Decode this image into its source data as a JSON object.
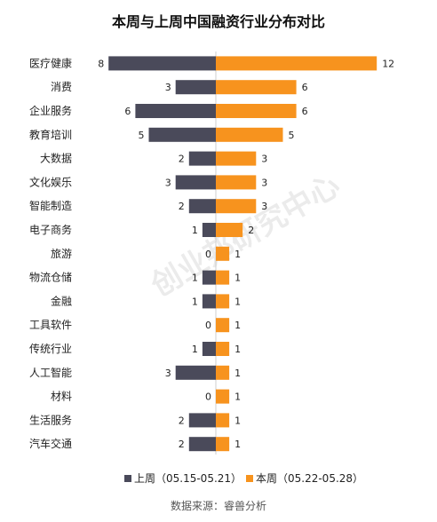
{
  "chart_data": {
    "type": "bar",
    "title": "本周与上周中国融资行业分布对比",
    "categories": [
      "医疗健康",
      "消费",
      "企业服务",
      "教育培训",
      "大数据",
      "文化娱乐",
      "智能制造",
      "电子商务",
      "旅游",
      "物流仓储",
      "金融",
      "工具软件",
      "传统行业",
      "人工智能",
      "材料",
      "生活服务",
      "汽车交通"
    ],
    "series": [
      {
        "name": "上周（05.15-05.21）",
        "color": "#4a4a5a",
        "values": [
          8,
          3,
          6,
          5,
          2,
          3,
          2,
          1,
          0,
          1,
          1,
          0,
          1,
          3,
          0,
          2,
          2
        ]
      },
      {
        "name": "本周（05.22-05.28）",
        "color": "#f7931e",
        "values": [
          12,
          6,
          6,
          5,
          3,
          3,
          3,
          2,
          1,
          1,
          1,
          1,
          1,
          1,
          1,
          1,
          1
        ]
      }
    ],
    "orientation": "diverging-horizontal",
    "legend_position": "bottom",
    "grid": false,
    "watermark": "创业邦研究中心",
    "source": "数据来源：睿兽分析"
  }
}
